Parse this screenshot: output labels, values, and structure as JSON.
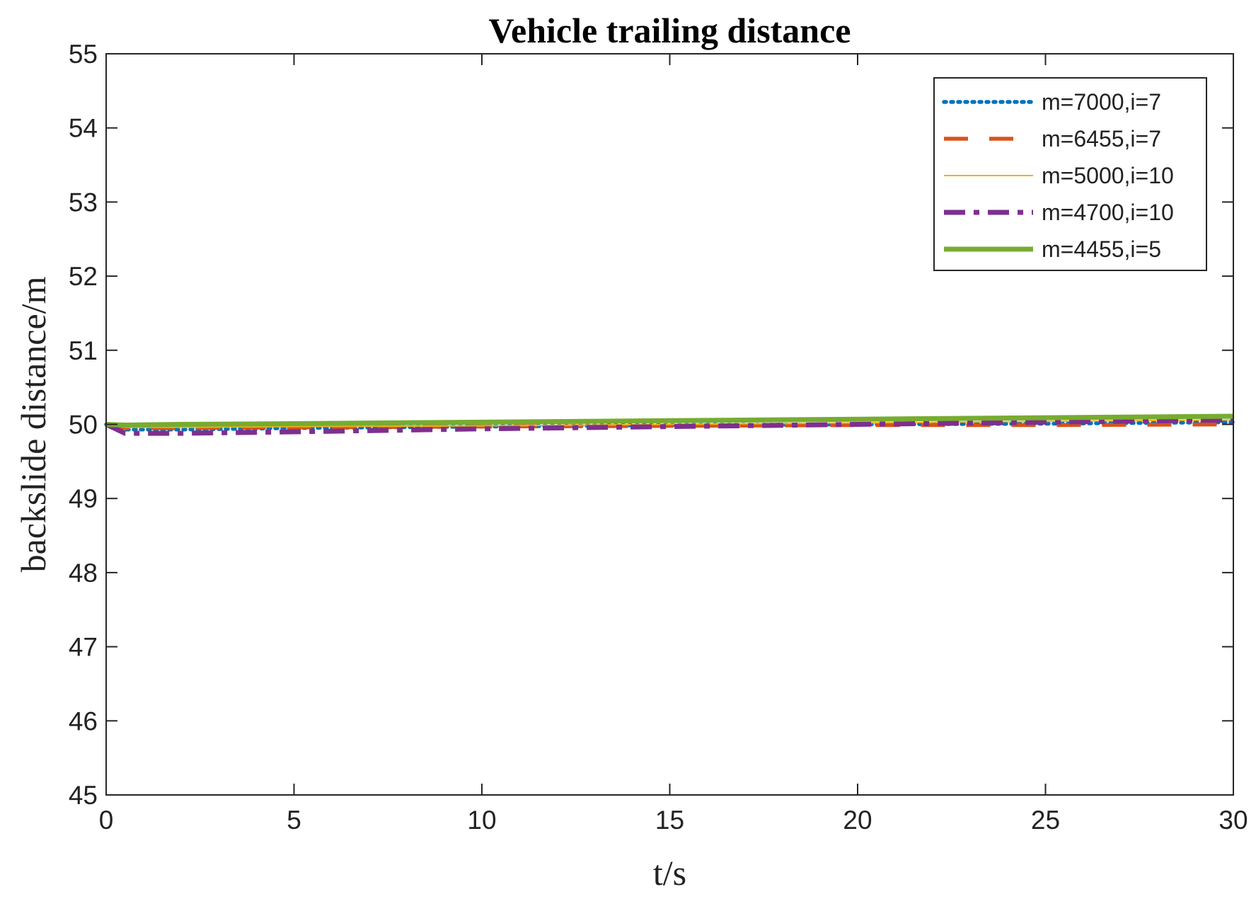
{
  "chart_data": {
    "type": "line",
    "title": "Vehicle trailing distance",
    "xlabel": "t/s",
    "ylabel": "backslide distance/m",
    "xlim": [
      0,
      30
    ],
    "ylim": [
      45,
      55
    ],
    "xticks": [
      "0",
      "5",
      "10",
      "15",
      "20",
      "25",
      "30"
    ],
    "yticks": [
      "45",
      "46",
      "47",
      "48",
      "49",
      "50",
      "51",
      "52",
      "53",
      "54",
      "55"
    ],
    "grid": false,
    "legend_position": "top-right",
    "series": [
      {
        "name": "m=7000,i=7",
        "color": "#0072BD",
        "style": "dotted",
        "x": [
          0,
          0.5,
          2,
          5,
          10,
          15,
          20,
          25,
          30
        ],
        "y": [
          50.0,
          49.93,
          49.93,
          49.95,
          49.97,
          49.99,
          50.0,
          50.01,
          50.03
        ]
      },
      {
        "name": "m=6455,i=7",
        "color": "#D95319",
        "style": "dashed",
        "x": [
          0,
          0.5,
          2,
          5,
          10,
          15,
          20,
          25,
          30
        ],
        "y": [
          50.0,
          49.95,
          49.95,
          49.96,
          49.97,
          49.98,
          49.99,
          49.99,
          50.0
        ]
      },
      {
        "name": "m=5000,i=10",
        "color": "#EDB120",
        "style": "solid-thin",
        "x": [
          0,
          0.5,
          2,
          5,
          10,
          15,
          20,
          25,
          30
        ],
        "y": [
          50.0,
          49.96,
          49.96,
          49.97,
          49.98,
          50.0,
          50.02,
          50.04,
          50.06
        ]
      },
      {
        "name": "m=4700,i=10",
        "color": "#7E2F8E",
        "style": "dash-dot",
        "x": [
          0,
          0.5,
          2,
          5,
          10,
          15,
          20,
          25,
          30
        ],
        "y": [
          50.0,
          49.88,
          49.88,
          49.9,
          49.94,
          49.97,
          50.0,
          50.03,
          50.06
        ]
      },
      {
        "name": "m=4455,i=5",
        "color": "#77AC30",
        "style": "solid-thick",
        "x": [
          0,
          0.5,
          2,
          5,
          10,
          15,
          20,
          25,
          30
        ],
        "y": [
          50.0,
          49.99,
          50.0,
          50.01,
          50.03,
          50.05,
          50.07,
          50.09,
          50.11
        ]
      }
    ]
  }
}
